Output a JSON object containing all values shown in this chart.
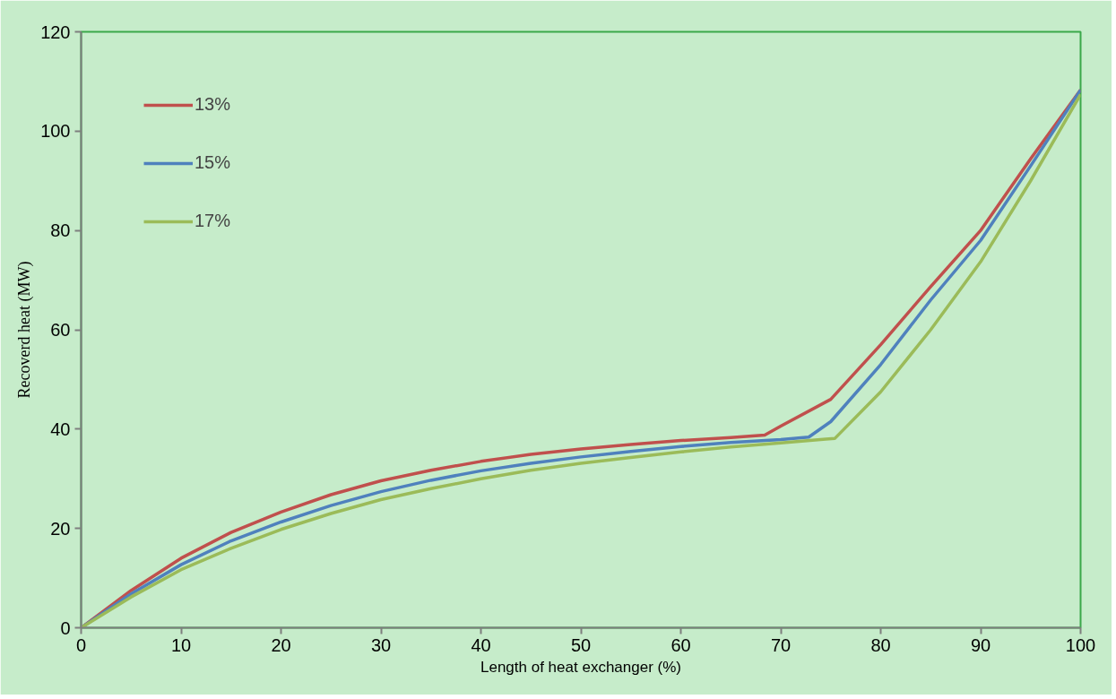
{
  "chart_data": {
    "type": "line",
    "xlabel": "Length of heat exchanger (%)",
    "ylabel": "Recoverd heat (MW)",
    "xlim": [
      0,
      100
    ],
    "ylim": [
      0,
      120
    ],
    "xticks": [
      0,
      10,
      20,
      30,
      40,
      50,
      60,
      70,
      80,
      90,
      100
    ],
    "yticks": [
      0,
      20,
      40,
      60,
      80,
      100,
      120
    ],
    "grid": false,
    "legend": "top left",
    "marker": "none",
    "line_style": "solid",
    "series": [
      {
        "name": "13%",
        "color": "#c0504d",
        "x": [
          0,
          5,
          10,
          15,
          20,
          25,
          30,
          35,
          40,
          45,
          50,
          55,
          60,
          65,
          68.4,
          70,
          75,
          80,
          85,
          90,
          95,
          100
        ],
        "values": [
          0,
          7.5,
          14,
          19.2,
          23.3,
          26.8,
          29.6,
          31.7,
          33.5,
          34.9,
          36,
          36.9,
          37.7,
          38.3,
          38.8,
          40.6,
          46,
          57,
          68.7,
          80,
          94.4,
          108.3
        ]
      },
      {
        "name": "15%",
        "color": "#4f81bd",
        "x": [
          0,
          5,
          10,
          15,
          20,
          25,
          30,
          35,
          40,
          45,
          50,
          55,
          60,
          65,
          70,
          72.8,
          75,
          80,
          85,
          90,
          95,
          100
        ],
        "values": [
          0,
          6.8,
          12.7,
          17.5,
          21.3,
          24.6,
          27.4,
          29.7,
          31.6,
          33.1,
          34.4,
          35.5,
          36.5,
          37.3,
          37.9,
          38.4,
          41.5,
          53,
          66,
          78,
          93,
          108.3
        ]
      },
      {
        "name": "17%",
        "color": "#9bbb59",
        "x": [
          0,
          5,
          10,
          15,
          20,
          25,
          30,
          35,
          40,
          45,
          50,
          55,
          60,
          65,
          70,
          74.5,
          75.4,
          80,
          85,
          90,
          95,
          100
        ],
        "values": [
          0,
          6.2,
          11.7,
          16,
          19.8,
          23,
          25.8,
          28,
          30,
          31.7,
          33.1,
          34.3,
          35.4,
          36.4,
          37.2,
          38,
          38.1,
          47.5,
          60,
          73.7,
          90,
          107.4
        ]
      }
    ]
  }
}
